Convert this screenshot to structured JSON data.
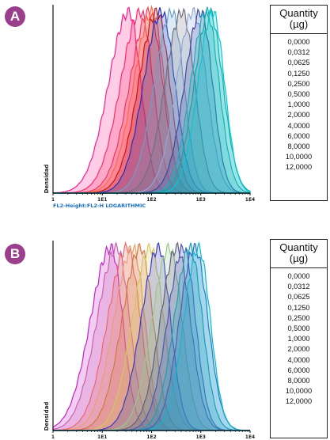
{
  "chart_data": [
    {
      "type": "area",
      "panel_label": "A",
      "ylabel": "Densidad",
      "xlabel": "FL2-Height:FL2-H LOGARITHMIC",
      "x_scale": "log",
      "xlim": [
        1,
        10000
      ],
      "x_ticks": [
        "1",
        "1E1",
        "1E2",
        "1E3",
        "1E4"
      ],
      "series": [
        {
          "color": "#ff1a8c",
          "peak": 35
        },
        {
          "color": "#ff2a6a",
          "peak": 60
        },
        {
          "color": "#f0385a",
          "peak": 90
        },
        {
          "color": "#ff6a40",
          "peak": 105
        },
        {
          "color": "#c01818",
          "peak": 130
        },
        {
          "color": "#2030c0",
          "peak": 160
        },
        {
          "color": "#6aa0c8",
          "peak": 260
        },
        {
          "color": "#707080",
          "peak": 420
        },
        {
          "color": "#8fa8d8",
          "peak": 700
        },
        {
          "color": "#3a4aa0",
          "peak": 1000
        },
        {
          "color": "#1ab0c0",
          "peak": 1300
        },
        {
          "color": "#10a8a0",
          "peak": 1500
        },
        {
          "color": "#00c8d8",
          "peak": 1750
        }
      ],
      "legend": {
        "title_line1": "Quantity",
        "title_line2": "(µg)",
        "items": [
          "0,0000",
          "0,0312",
          "0,0625",
          "0,1250",
          "0,2500",
          "0,5000",
          "1,0000",
          "2,0000",
          "4,0000",
          "6,0000",
          "8,0000",
          "10,0000",
          "12,0000"
        ]
      }
    },
    {
      "type": "area",
      "panel_label": "B",
      "ylabel": "Densidad",
      "xlabel": "FL2-Height:FL2-H LOGARITHMIC",
      "x_scale": "log",
      "xlim": [
        1,
        10000
      ],
      "x_ticks": [
        "1",
        "1E1",
        "1E2",
        "1E3",
        "1E4"
      ],
      "series": [
        {
          "color": "#c81ec8",
          "peak": 15
        },
        {
          "color": "#c860b0",
          "peak": 20
        },
        {
          "color": "#e86a6a",
          "peak": 32
        },
        {
          "color": "#e8a070",
          "peak": 42
        },
        {
          "color": "#d07840",
          "peak": 60
        },
        {
          "color": "#d0c860",
          "peak": 95
        },
        {
          "color": "#3a3ac0",
          "peak": 140
        },
        {
          "color": "#9ac88a",
          "peak": 230
        },
        {
          "color": "#606080",
          "peak": 330
        },
        {
          "color": "#4a58b8",
          "peak": 450
        },
        {
          "color": "#1aa0b8",
          "peak": 600
        },
        {
          "color": "#2a70c0",
          "peak": 750
        },
        {
          "color": "#10b8d0",
          "peak": 900
        }
      ],
      "legend": {
        "title_line1": "Quantity",
        "title_line2": "(µg)",
        "items": [
          "0,0000",
          "0,0312",
          "0,0625",
          "0,1250",
          "0,2500",
          "0,5000",
          "1,0000",
          "2,0000",
          "4,0000",
          "6,0000",
          "8,0000",
          "10,0000",
          "12,0000"
        ]
      }
    }
  ]
}
